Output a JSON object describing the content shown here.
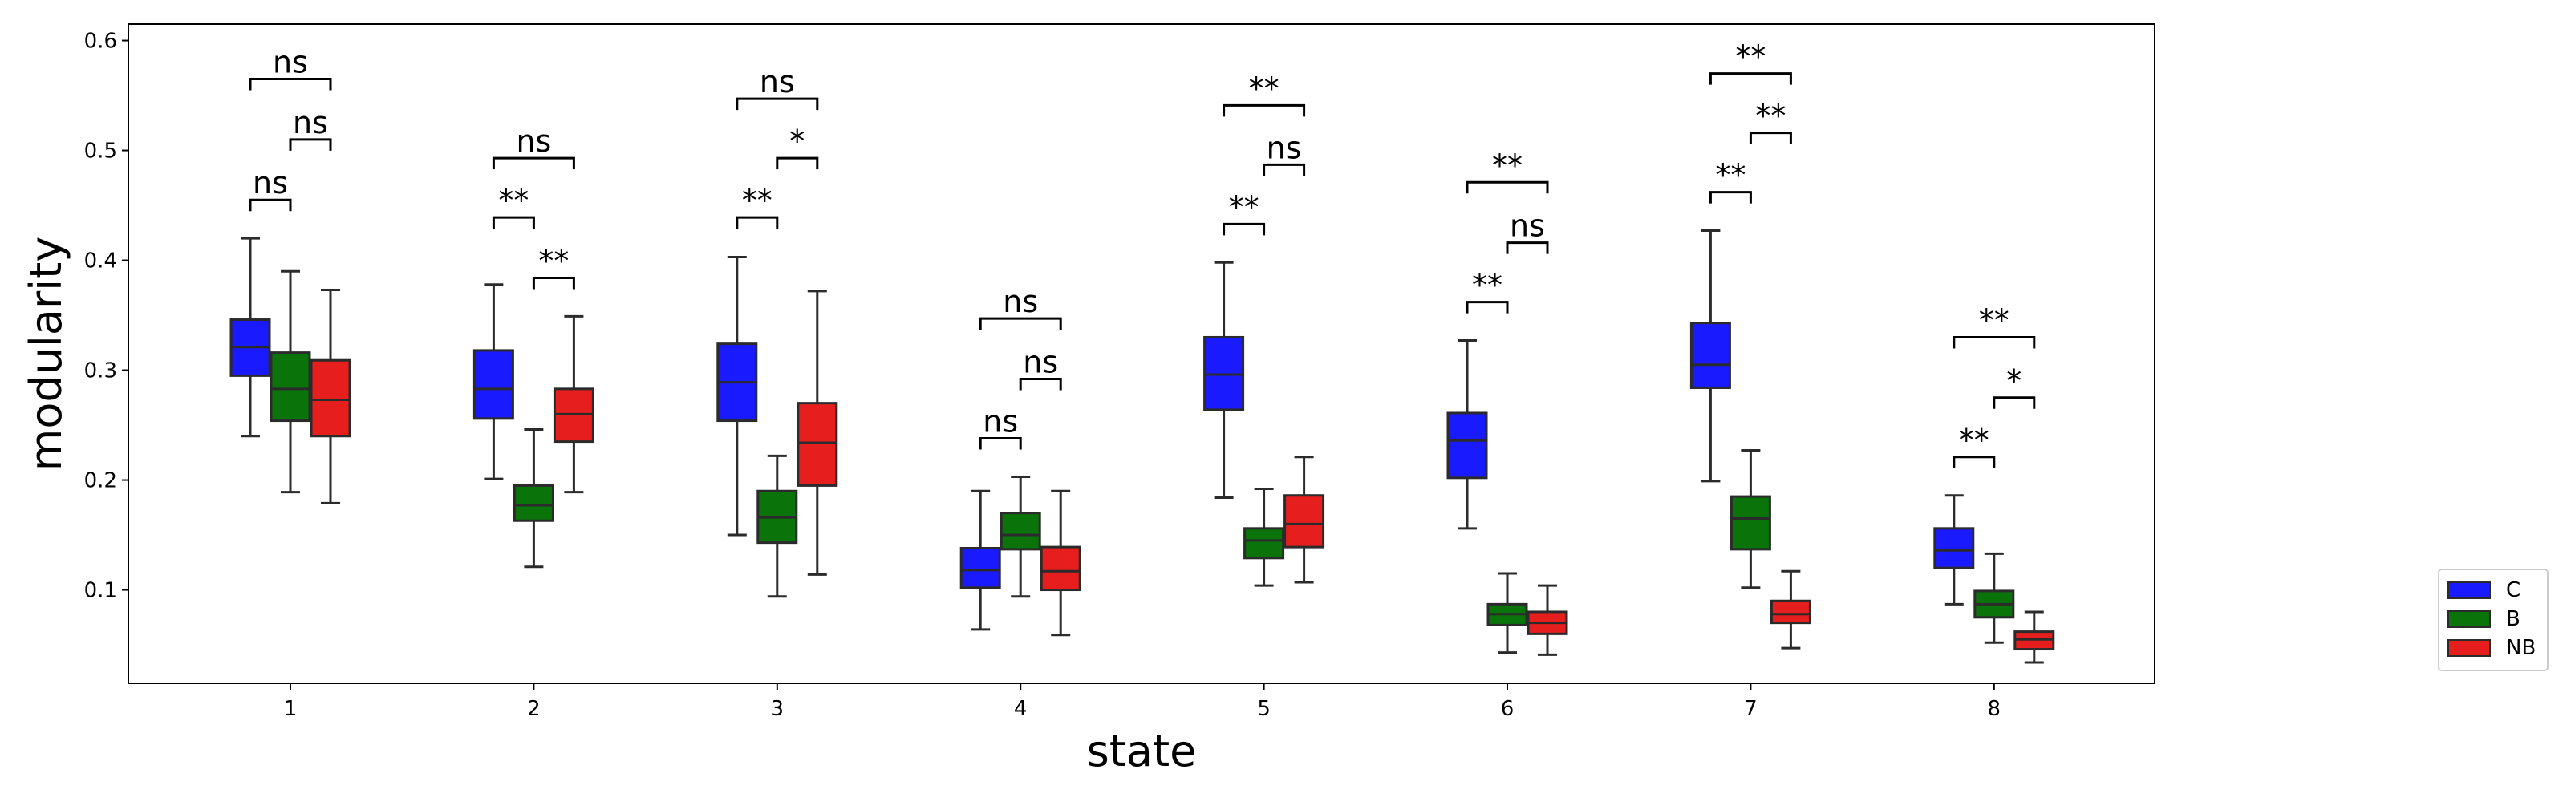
{
  "chart_data": {
    "type": "box",
    "xlabel": "state",
    "ylabel": "modularity",
    "ylim": [
      0.015,
      0.615
    ],
    "yticks": [
      "0.1",
      "0.2",
      "0.3",
      "0.4",
      "0.5",
      "0.6"
    ],
    "categories": [
      "1",
      "2",
      "3",
      "4",
      "5",
      "6",
      "7",
      "8"
    ],
    "legend_position": "right",
    "series": [
      {
        "name": "C",
        "color": "#1a1aff",
        "boxes": [
          {
            "min": 0.24,
            "q1": 0.295,
            "median": 0.321,
            "q3": 0.346,
            "max": 0.42
          },
          {
            "min": 0.201,
            "q1": 0.256,
            "median": 0.283,
            "q3": 0.318,
            "max": 0.378
          },
          {
            "min": 0.15,
            "q1": 0.254,
            "median": 0.289,
            "q3": 0.324,
            "max": 0.403
          },
          {
            "min": 0.064,
            "q1": 0.102,
            "median": 0.118,
            "q3": 0.138,
            "max": 0.19
          },
          {
            "min": 0.184,
            "q1": 0.264,
            "median": 0.296,
            "q3": 0.33,
            "max": 0.398
          },
          {
            "min": 0.156,
            "q1": 0.202,
            "median": 0.236,
            "q3": 0.261,
            "max": 0.327
          },
          {
            "min": 0.199,
            "q1": 0.284,
            "median": 0.305,
            "q3": 0.343,
            "max": 0.427
          },
          {
            "min": 0.087,
            "q1": 0.12,
            "median": 0.136,
            "q3": 0.156,
            "max": 0.186
          }
        ]
      },
      {
        "name": "B",
        "color": "#0a740a",
        "boxes": [
          {
            "min": 0.189,
            "q1": 0.254,
            "median": 0.283,
            "q3": 0.316,
            "max": 0.39
          },
          {
            "min": 0.121,
            "q1": 0.163,
            "median": 0.177,
            "q3": 0.195,
            "max": 0.246
          },
          {
            "min": 0.094,
            "q1": 0.143,
            "median": 0.166,
            "q3": 0.19,
            "max": 0.222
          },
          {
            "min": 0.094,
            "q1": 0.137,
            "median": 0.15,
            "q3": 0.17,
            "max": 0.203
          },
          {
            "min": 0.104,
            "q1": 0.129,
            "median": 0.145,
            "q3": 0.156,
            "max": 0.192
          },
          {
            "min": 0.043,
            "q1": 0.068,
            "median": 0.078,
            "q3": 0.087,
            "max": 0.115
          },
          {
            "min": 0.102,
            "q1": 0.137,
            "median": 0.165,
            "q3": 0.185,
            "max": 0.227
          },
          {
            "min": 0.052,
            "q1": 0.075,
            "median": 0.087,
            "q3": 0.099,
            "max": 0.133
          }
        ]
      },
      {
        "name": "NB",
        "color": "#e61e1e",
        "boxes": [
          {
            "min": 0.179,
            "q1": 0.24,
            "median": 0.273,
            "q3": 0.309,
            "max": 0.373
          },
          {
            "min": 0.189,
            "q1": 0.235,
            "median": 0.26,
            "q3": 0.283,
            "max": 0.349
          },
          {
            "min": 0.114,
            "q1": 0.195,
            "median": 0.234,
            "q3": 0.27,
            "max": 0.372
          },
          {
            "min": 0.059,
            "q1": 0.1,
            "median": 0.117,
            "q3": 0.139,
            "max": 0.19
          },
          {
            "min": 0.107,
            "q1": 0.139,
            "median": 0.16,
            "q3": 0.186,
            "max": 0.221
          },
          {
            "min": 0.041,
            "q1": 0.06,
            "median": 0.07,
            "q3": 0.08,
            "max": 0.104
          },
          {
            "min": 0.047,
            "q1": 0.07,
            "median": 0.078,
            "q3": 0.09,
            "max": 0.117
          },
          {
            "min": 0.034,
            "q1": 0.046,
            "median": 0.055,
            "q3": 0.062,
            "max": 0.08
          }
        ]
      }
    ],
    "annotations": [
      {
        "category": "1",
        "pair": [
          "C",
          "B"
        ],
        "label": "ns",
        "y": 0.455
      },
      {
        "category": "1",
        "pair": [
          "B",
          "NB"
        ],
        "label": "ns",
        "y": 0.51
      },
      {
        "category": "1",
        "pair": [
          "C",
          "NB"
        ],
        "label": "ns",
        "y": 0.565
      },
      {
        "category": "2",
        "pair": [
          "C",
          "B"
        ],
        "label": "**",
        "y": 0.439
      },
      {
        "category": "2",
        "pair": [
          "B",
          "NB"
        ],
        "label": "**",
        "y": 0.384
      },
      {
        "category": "2",
        "pair": [
          "C",
          "NB"
        ],
        "label": "ns",
        "y": 0.493
      },
      {
        "category": "3",
        "pair": [
          "C",
          "B"
        ],
        "label": "**",
        "y": 0.439
      },
      {
        "category": "3",
        "pair": [
          "B",
          "NB"
        ],
        "label": "*",
        "y": 0.493
      },
      {
        "category": "3",
        "pair": [
          "C",
          "NB"
        ],
        "label": "ns",
        "y": 0.547
      },
      {
        "category": "4",
        "pair": [
          "C",
          "B"
        ],
        "label": "ns",
        "y": 0.238
      },
      {
        "category": "4",
        "pair": [
          "B",
          "NB"
        ],
        "label": "ns",
        "y": 0.292
      },
      {
        "category": "4",
        "pair": [
          "C",
          "NB"
        ],
        "label": "ns",
        "y": 0.347
      },
      {
        "category": "5",
        "pair": [
          "C",
          "B"
        ],
        "label": "**",
        "y": 0.433
      },
      {
        "category": "5",
        "pair": [
          "B",
          "NB"
        ],
        "label": "ns",
        "y": 0.487
      },
      {
        "category": "5",
        "pair": [
          "C",
          "NB"
        ],
        "label": "**",
        "y": 0.541
      },
      {
        "category": "6",
        "pair": [
          "C",
          "B"
        ],
        "label": "**",
        "y": 0.362
      },
      {
        "category": "6",
        "pair": [
          "B",
          "NB"
        ],
        "label": "ns",
        "y": 0.416
      },
      {
        "category": "6",
        "pair": [
          "C",
          "NB"
        ],
        "label": "**",
        "y": 0.471
      },
      {
        "category": "7",
        "pair": [
          "C",
          "B"
        ],
        "label": "**",
        "y": 0.462
      },
      {
        "category": "7",
        "pair": [
          "B",
          "NB"
        ],
        "label": "**",
        "y": 0.516
      },
      {
        "category": "7",
        "pair": [
          "C",
          "NB"
        ],
        "label": "**",
        "y": 0.57
      },
      {
        "category": "8",
        "pair": [
          "C",
          "B"
        ],
        "label": "**",
        "y": 0.221
      },
      {
        "category": "8",
        "pair": [
          "B",
          "NB"
        ],
        "label": "*",
        "y": 0.275
      },
      {
        "category": "8",
        "pair": [
          "C",
          "NB"
        ],
        "label": "**",
        "y": 0.33
      }
    ]
  }
}
